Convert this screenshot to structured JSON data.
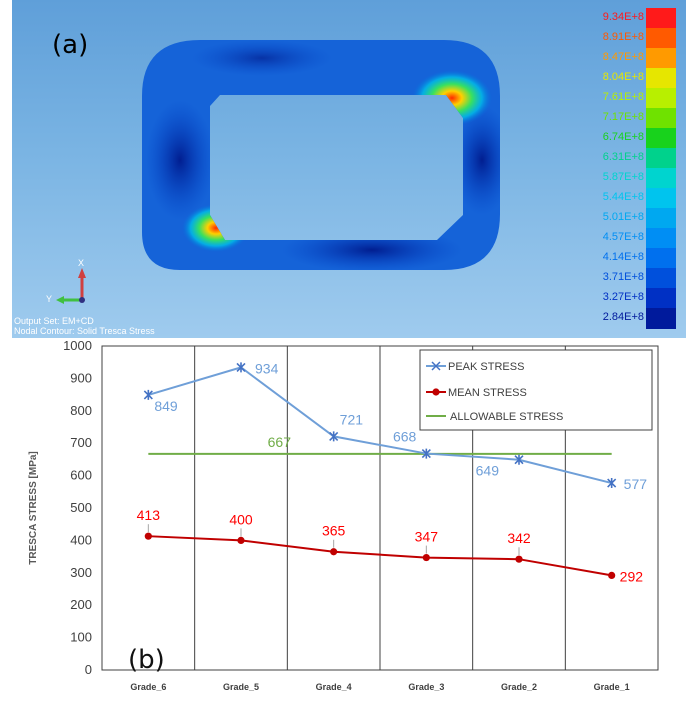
{
  "panel_a": {
    "label": "(a)",
    "caption_output": "Output Set: EM+CD",
    "caption_contour": "Nodal Contour: Solid Tresca Stress",
    "axis_x": "X",
    "axis_y": "Y",
    "colorbar": {
      "labels": [
        "9.34E+8",
        "8.91E+8",
        "8.47E+8",
        "8.04E+8",
        "7.61E+8",
        "7.17E+8",
        "6.74E+8",
        "6.31E+8",
        "5.87E+8",
        "5.44E+8",
        "5.01E+8",
        "4.57E+8",
        "4.14E+8",
        "3.71E+8",
        "3.27E+8",
        "2.84E+8"
      ],
      "colors": [
        "#ff1a1a",
        "#ff5a00",
        "#ff9a00",
        "#e6e600",
        "#b8ef00",
        "#6fe200",
        "#18d21c",
        "#00d28c",
        "#00d4cf",
        "#00c4ee",
        "#00a8f0",
        "#008ef4",
        "#0070ee",
        "#0050dc",
        "#0030c4",
        "#001a9c"
      ]
    }
  },
  "panel_b": {
    "label": "(b)"
  },
  "chart_data": {
    "type": "line",
    "categories": [
      "Grade_6",
      "Grade_5",
      "Grade_4",
      "Grade_3",
      "Grade_2",
      "Grade_1"
    ],
    "series": [
      {
        "name": "PEAK STRESS",
        "values": [
          849,
          934,
          721,
          668,
          649,
          577
        ],
        "color": "#6f9fd8",
        "marker": "star"
      },
      {
        "name": "MEAN STRESS",
        "values": [
          413,
          400,
          365,
          347,
          342,
          292
        ],
        "color": "#c00000",
        "marker": "circle",
        "label_color": "#ff0000"
      },
      {
        "name": "ALLOWABLE STRESS",
        "values": [
          667,
          667,
          667,
          667,
          667,
          667
        ],
        "color": "#70ad47",
        "marker": "none",
        "point_label": "667"
      }
    ],
    "xlabel": "",
    "ylabel": "TRESCA STRESS  [MPa]",
    "ylim": [
      0,
      1000
    ],
    "yticks": [
      0,
      100,
      200,
      300,
      400,
      500,
      600,
      700,
      800,
      900,
      1000
    ],
    "grid": "vertical",
    "legend_position": "top-right"
  }
}
